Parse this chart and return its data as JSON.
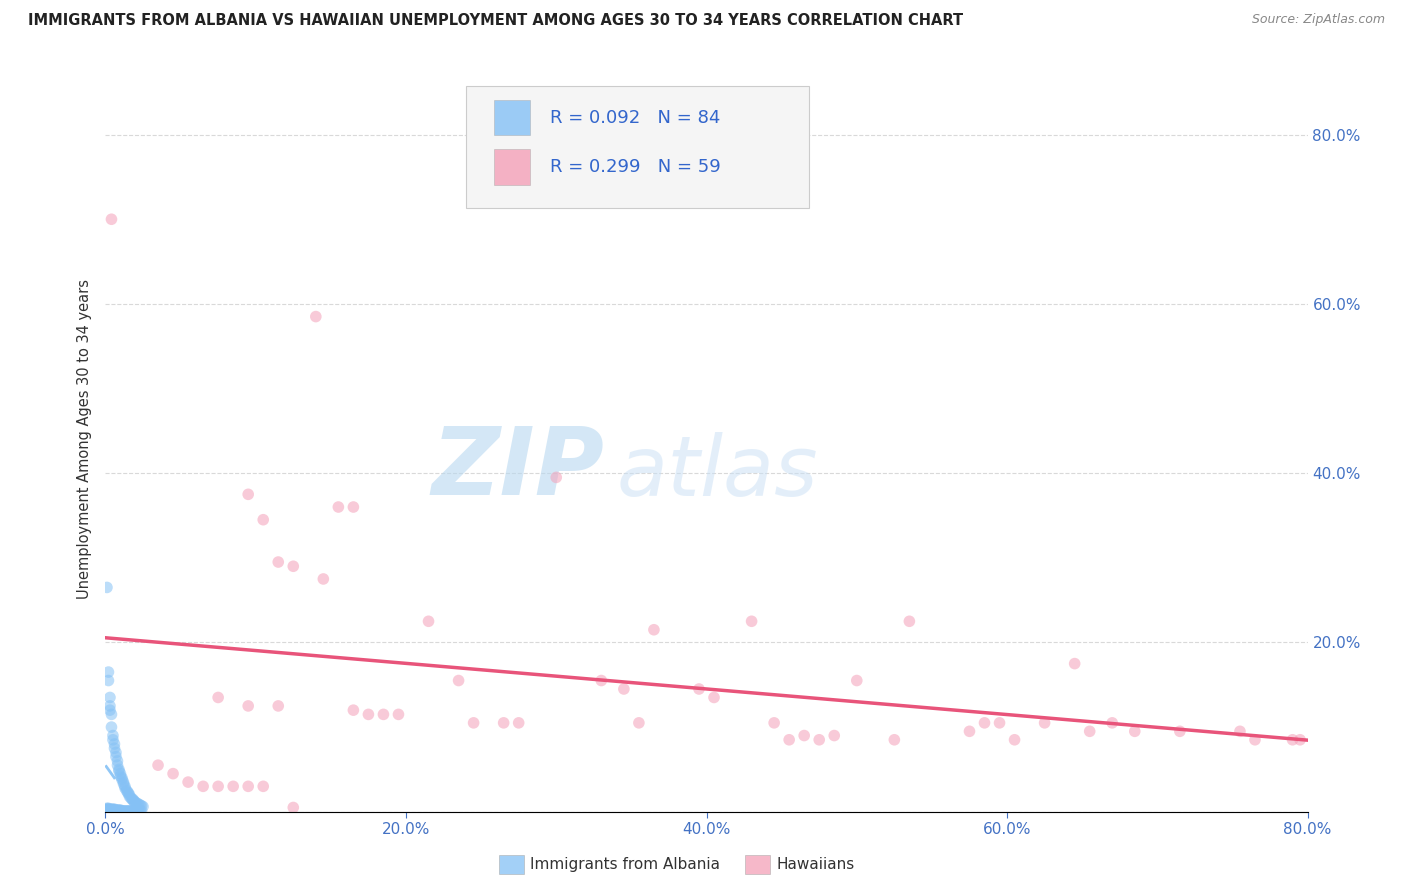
{
  "title": "IMMIGRANTS FROM ALBANIA VS HAWAIIAN UNEMPLOYMENT AMONG AGES 30 TO 34 YEARS CORRELATION CHART",
  "source": "Source: ZipAtlas.com",
  "ylabel": "Unemployment Among Ages 30 to 34 years",
  "xlim": [
    0.0,
    0.8
  ],
  "ylim": [
    0.0,
    0.88
  ],
  "xticks": [
    0.0,
    0.2,
    0.4,
    0.6,
    0.8
  ],
  "xticklabels": [
    "0.0%",
    "20.0%",
    "40.0%",
    "60.0%",
    "80.0%"
  ],
  "right_yticks": [
    0.2,
    0.4,
    0.6,
    0.8
  ],
  "yticklabels_right": [
    "20.0%",
    "40.0%",
    "60.0%",
    "80.0%"
  ],
  "albania_color": "#85c1f5",
  "hawaii_color": "#f4a0b8",
  "trendline_albania_color": "#85c1f5",
  "trendline_hawaii_color": "#e8547a",
  "albania_R": "0.092",
  "albania_N": "84",
  "hawaii_R": "0.299",
  "hawaii_N": "59",
  "scatter_alpha": 0.55,
  "marker_size": 70,
  "albania_points": [
    [
      0.001,
      0.265
    ],
    [
      0.002,
      0.165
    ],
    [
      0.002,
      0.155
    ],
    [
      0.003,
      0.135
    ],
    [
      0.003,
      0.125
    ],
    [
      0.003,
      0.12
    ],
    [
      0.004,
      0.115
    ],
    [
      0.004,
      0.1
    ],
    [
      0.005,
      0.09
    ],
    [
      0.005,
      0.085
    ],
    [
      0.006,
      0.08
    ],
    [
      0.006,
      0.075
    ],
    [
      0.007,
      0.07
    ],
    [
      0.007,
      0.065
    ],
    [
      0.008,
      0.06
    ],
    [
      0.008,
      0.055
    ],
    [
      0.009,
      0.05
    ],
    [
      0.009,
      0.048
    ],
    [
      0.01,
      0.045
    ],
    [
      0.01,
      0.042
    ],
    [
      0.011,
      0.04
    ],
    [
      0.011,
      0.038
    ],
    [
      0.012,
      0.035
    ],
    [
      0.012,
      0.033
    ],
    [
      0.013,
      0.03
    ],
    [
      0.013,
      0.028
    ],
    [
      0.014,
      0.025
    ],
    [
      0.015,
      0.023
    ],
    [
      0.015,
      0.022
    ],
    [
      0.016,
      0.02
    ],
    [
      0.016,
      0.018
    ],
    [
      0.017,
      0.016
    ],
    [
      0.018,
      0.015
    ],
    [
      0.018,
      0.014
    ],
    [
      0.019,
      0.013
    ],
    [
      0.019,
      0.012
    ],
    [
      0.02,
      0.011
    ],
    [
      0.021,
      0.01
    ],
    [
      0.022,
      0.009
    ],
    [
      0.023,
      0.008
    ],
    [
      0.024,
      0.007
    ],
    [
      0.025,
      0.006
    ],
    [
      0.001,
      0.004
    ],
    [
      0.001,
      0.003
    ],
    [
      0.001,
      0.002
    ],
    [
      0.001,
      0.001
    ],
    [
      0.002,
      0.004
    ],
    [
      0.002,
      0.003
    ],
    [
      0.002,
      0.002
    ],
    [
      0.002,
      0.001
    ],
    [
      0.003,
      0.003
    ],
    [
      0.003,
      0.002
    ],
    [
      0.003,
      0.001
    ],
    [
      0.004,
      0.003
    ],
    [
      0.004,
      0.002
    ],
    [
      0.004,
      0.001
    ],
    [
      0.005,
      0.003
    ],
    [
      0.005,
      0.002
    ],
    [
      0.005,
      0.001
    ],
    [
      0.006,
      0.003
    ],
    [
      0.006,
      0.002
    ],
    [
      0.006,
      0.001
    ],
    [
      0.007,
      0.002
    ],
    [
      0.007,
      0.001
    ],
    [
      0.008,
      0.002
    ],
    [
      0.008,
      0.001
    ],
    [
      0.009,
      0.002
    ],
    [
      0.009,
      0.001
    ],
    [
      0.01,
      0.002
    ],
    [
      0.01,
      0.001
    ],
    [
      0.011,
      0.001
    ],
    [
      0.012,
      0.001
    ],
    [
      0.013,
      0.001
    ],
    [
      0.014,
      0.001
    ],
    [
      0.015,
      0.001
    ],
    [
      0.016,
      0.001
    ],
    [
      0.017,
      0.001
    ],
    [
      0.018,
      0.001
    ],
    [
      0.019,
      0.001
    ],
    [
      0.02,
      0.001
    ],
    [
      0.021,
      0.001
    ],
    [
      0.022,
      0.001
    ],
    [
      0.023,
      0.001
    ],
    [
      0.024,
      0.001
    ]
  ],
  "hawaii_points": [
    [
      0.004,
      0.7
    ],
    [
      0.14,
      0.585
    ],
    [
      0.3,
      0.395
    ],
    [
      0.095,
      0.375
    ],
    [
      0.155,
      0.36
    ],
    [
      0.165,
      0.36
    ],
    [
      0.105,
      0.345
    ],
    [
      0.115,
      0.295
    ],
    [
      0.125,
      0.29
    ],
    [
      0.145,
      0.275
    ],
    [
      0.215,
      0.225
    ],
    [
      0.365,
      0.215
    ],
    [
      0.075,
      0.135
    ],
    [
      0.095,
      0.125
    ],
    [
      0.235,
      0.155
    ],
    [
      0.33,
      0.155
    ],
    [
      0.345,
      0.145
    ],
    [
      0.395,
      0.145
    ],
    [
      0.405,
      0.135
    ],
    [
      0.115,
      0.125
    ],
    [
      0.165,
      0.12
    ],
    [
      0.175,
      0.115
    ],
    [
      0.185,
      0.115
    ],
    [
      0.195,
      0.115
    ],
    [
      0.245,
      0.105
    ],
    [
      0.265,
      0.105
    ],
    [
      0.275,
      0.105
    ],
    [
      0.355,
      0.105
    ],
    [
      0.43,
      0.225
    ],
    [
      0.445,
      0.105
    ],
    [
      0.455,
      0.085
    ],
    [
      0.465,
      0.09
    ],
    [
      0.475,
      0.085
    ],
    [
      0.485,
      0.09
    ],
    [
      0.5,
      0.155
    ],
    [
      0.525,
      0.085
    ],
    [
      0.535,
      0.225
    ],
    [
      0.575,
      0.095
    ],
    [
      0.585,
      0.105
    ],
    [
      0.595,
      0.105
    ],
    [
      0.605,
      0.085
    ],
    [
      0.625,
      0.105
    ],
    [
      0.645,
      0.175
    ],
    [
      0.655,
      0.095
    ],
    [
      0.67,
      0.105
    ],
    [
      0.685,
      0.095
    ],
    [
      0.715,
      0.095
    ],
    [
      0.755,
      0.095
    ],
    [
      0.765,
      0.085
    ],
    [
      0.79,
      0.085
    ],
    [
      0.795,
      0.085
    ],
    [
      0.035,
      0.055
    ],
    [
      0.045,
      0.045
    ],
    [
      0.055,
      0.035
    ],
    [
      0.065,
      0.03
    ],
    [
      0.075,
      0.03
    ],
    [
      0.085,
      0.03
    ],
    [
      0.095,
      0.03
    ],
    [
      0.105,
      0.03
    ],
    [
      0.125,
      0.005
    ]
  ],
  "watermark_zip": "ZIP",
  "watermark_atlas": "atlas",
  "background_color": "#ffffff",
  "grid_color": "#d0d0d0",
  "legend_bg": "#f5f5f5",
  "legend_border": "#cccccc"
}
